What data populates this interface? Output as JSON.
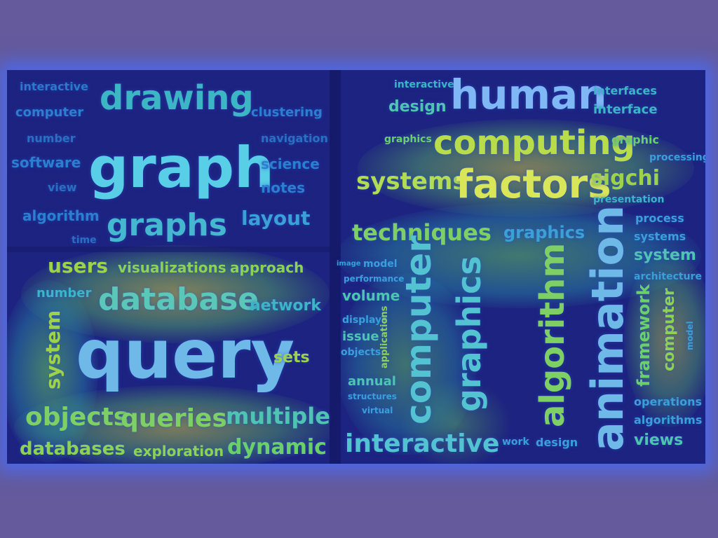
{
  "heatmap": {
    "colors": {
      "page_bg": "#645a9c",
      "frame": "#1d2380",
      "hot": "#d9d43a",
      "warm": "#6ee05a",
      "mid": "#2ec4b8",
      "cool": "#3a7ee8"
    }
  },
  "cloud_graphs": {
    "words": [
      "interactive",
      "drawing",
      "computer",
      "clustering",
      "number",
      "navigation",
      "graph",
      "software",
      "science",
      "view",
      "notes",
      "algorithm",
      "layout",
      "graphs",
      "time"
    ]
  },
  "cloud_database": {
    "words": [
      "users",
      "visualizations",
      "approach",
      "number",
      "database",
      "network",
      "system",
      "query",
      "sets",
      "objects",
      "queries",
      "multiple",
      "databases",
      "exploration",
      "dynamic"
    ]
  },
  "cloud_hci": {
    "words": [
      "interactive",
      "human",
      "interfaces",
      "design",
      "interface",
      "graphics",
      "computing",
      "graphic",
      "processing",
      "systems",
      "factors",
      "sigchi",
      "presentation",
      "techniques",
      "graphics",
      "process",
      "systems",
      "system",
      "image",
      "model",
      "performance",
      "architecture",
      "volume",
      "displays",
      "applications",
      "issue",
      "objects",
      "annual",
      "structures",
      "virtual",
      "computer",
      "graphics",
      "algorithm",
      "animation",
      "framework",
      "computer",
      "model",
      "operations",
      "algorithms",
      "views",
      "interactive",
      "work",
      "design"
    ]
  }
}
